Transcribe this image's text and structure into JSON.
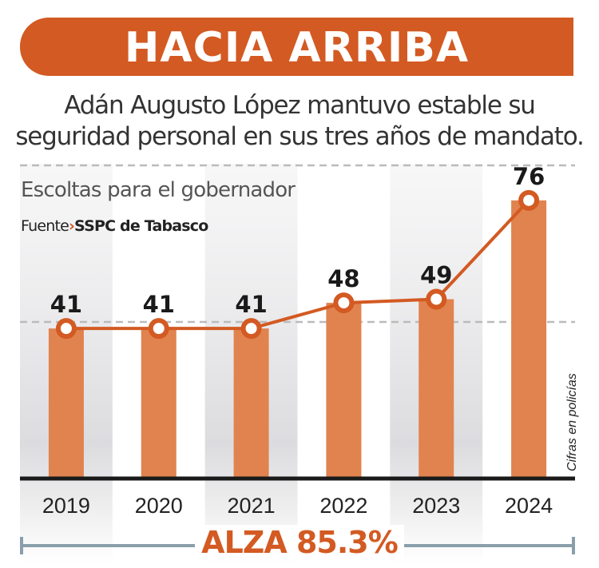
{
  "header": {
    "title": "HACIA ARRIBA"
  },
  "subtitle": {
    "line1": "Adán Augusto López mantuvo estable su",
    "line2": "seguridad personal en sus tres años de mandato."
  },
  "chart_data": {
    "type": "bar",
    "title": "Escoltas para el gobernador",
    "source_label": "Fuente",
    "source": "SSPC de Tabasco",
    "units_note": "Cifras en policías",
    "categories": [
      "2019",
      "2020",
      "2021",
      "2022",
      "2023",
      "2024"
    ],
    "series": [
      {
        "values": [
          41,
          41,
          41,
          48,
          49,
          76
        ]
      }
    ],
    "overlay": "line",
    "ylim": [
      0,
      86
    ],
    "grid": true,
    "annotation": "ALZA 85.3%",
    "colors": {
      "bar": "#E0834F",
      "line": "#D35A22",
      "band": "#E6E6E8",
      "axis": "#1A1A1A",
      "bracket": "#8A9FAB"
    }
  }
}
